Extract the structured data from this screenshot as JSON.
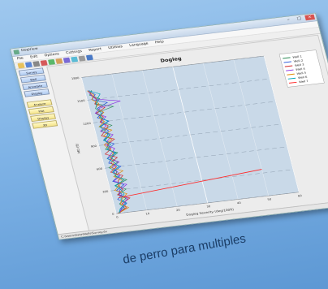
{
  "window": {
    "title": "DogView"
  },
  "menu": [
    "File",
    "Edit",
    "Options",
    "Cuttings",
    "Report",
    "Utilities",
    "Language",
    "Help"
  ],
  "toolbar_icons": [
    "open-icon",
    "save-icon",
    "print-icon",
    "chart-icon",
    "table-icon",
    "grid-icon",
    "zoom-icon",
    "export-icon",
    "settings-icon",
    "help-icon"
  ],
  "left_buttons_top": [
    "Survey",
    "Well",
    "Annotate",
    "Display"
  ],
  "left_buttons_bottom": [
    "Analyze",
    "Plot",
    "Display",
    "3D"
  ],
  "statusbar": "C:\\Users\\Data\\Wells\\Survey.dv",
  "tagline": "de perro para multiples",
  "colors": {
    "window_bg": "#f2f2f2",
    "plot_bg": "#c9d9e8",
    "accent_blue": "#aecbf2",
    "accent_yellow": "#f5e48a"
  },
  "chart_data": {
    "type": "line",
    "title": "Dogleg",
    "xlabel": "Dogleg Severity (deg/100ft)",
    "ylabel": "MD (ft)",
    "xlim": [
      0,
      60
    ],
    "ylim": [
      0,
      1800
    ],
    "x_ticks": [
      "0",
      "10",
      "20",
      "30",
      "40",
      "50",
      "60"
    ],
    "y_ticks": [
      "0",
      "300",
      "600",
      "900",
      "1200",
      "1500",
      "1800"
    ],
    "grid": true,
    "legend_position": "top-right",
    "series": [
      {
        "name": "Well 1",
        "color": "#2e8b57",
        "md": [
          0,
          60,
          120,
          180,
          240,
          300,
          360,
          420,
          480,
          540,
          600,
          660,
          720,
          780,
          840,
          900,
          960,
          1020,
          1080,
          1140,
          1200,
          1260,
          1320,
          1380,
          1440,
          1500,
          1560,
          1620
        ],
        "dls": [
          1.0,
          3.1,
          1.8,
          4.3,
          2.2,
          5.1,
          2.0,
          6.1,
          2.7,
          3.6,
          1.4,
          4.7,
          2.9,
          5.4,
          1.8,
          3.3,
          2.4,
          4.5,
          1.9,
          5.8,
          2.5,
          3.2,
          1.6,
          7.8,
          2.3,
          4.1,
          1.2,
          2.2
        ]
      },
      {
        "name": "Well 2",
        "color": "#1f4fd6",
        "md": [
          0,
          60,
          120,
          180,
          240,
          300,
          360,
          420,
          480,
          540,
          600,
          660,
          720,
          780,
          840,
          900,
          960,
          1020,
          1080,
          1140,
          1200,
          1260,
          1320,
          1380,
          1440,
          1500,
          1560,
          1620
        ],
        "dls": [
          0.8,
          2.4,
          4.2,
          1.6,
          3.4,
          2.0,
          4.8,
          1.5,
          3.8,
          2.5,
          5.3,
          1.7,
          3.1,
          4.4,
          2.7,
          5.0,
          1.9,
          3.6,
          4.2,
          2.1,
          5.2,
          1.8,
          4.1,
          2.6,
          6.2,
          1.5,
          3.0,
          1.1
        ]
      },
      {
        "name": "Well 3",
        "color": "#d12a2a",
        "md": [
          0,
          60,
          120,
          180,
          240,
          300,
          360,
          420,
          480,
          540,
          600,
          660,
          720,
          780,
          840,
          900,
          960,
          1020,
          1080,
          1140,
          1200,
          1260,
          1320,
          1380,
          1440,
          1500,
          1560,
          1620
        ],
        "dls": [
          0.5,
          3.7,
          2.6,
          5.6,
          1.9,
          4.1,
          2.9,
          3.3,
          5.2,
          1.6,
          3.9,
          2.4,
          4.9,
          1.3,
          3.6,
          2.7,
          5.5,
          1.6,
          3.2,
          4.6,
          2.3,
          3.8,
          1.9,
          5.0,
          2.1,
          3.1,
          1.8,
          0.9
        ]
      },
      {
        "name": "Well 4",
        "color": "#8a2be2",
        "md": [
          0,
          60,
          120,
          180,
          240,
          300,
          360,
          420,
          480,
          540,
          600,
          660,
          720,
          780,
          840,
          900,
          960,
          1020,
          1080,
          1140,
          1200,
          1260,
          1320,
          1380,
          1440,
          1500,
          1560,
          1620
        ],
        "dls": [
          1.2,
          2.0,
          3.4,
          4.8,
          2.5,
          3.1,
          5.7,
          1.9,
          4.3,
          3.7,
          2.4,
          5.1,
          1.6,
          3.4,
          4.8,
          2.1,
          3.5,
          5.4,
          1.7,
          3.9,
          2.6,
          4.6,
          1.5,
          3.4,
          10.5,
          2.8,
          1.6,
          1.0
        ]
      },
      {
        "name": "Well 5",
        "color": "#e08a00",
        "md": [
          0,
          60,
          120,
          180,
          240,
          300,
          360,
          420,
          480,
          540,
          600,
          660,
          720,
          780,
          840,
          900,
          960,
          1020,
          1080,
          1140,
          1200,
          1260,
          1320,
          1380,
          1440,
          1500,
          1560,
          1620
        ],
        "dls": [
          0.6,
          4.4,
          2.1,
          3.0,
          5.0,
          1.4,
          3.4,
          4.6,
          2.2,
          5.6,
          1.9,
          3.5,
          2.6,
          4.0,
          3.1,
          1.7,
          4.7,
          2.3,
          5.4,
          1.6,
          3.7,
          2.4,
          4.3,
          1.9,
          3.4,
          1.5,
          2.5,
          0.8
        ]
      },
      {
        "name": "Well 6",
        "color": "#00a5b8",
        "md": [
          0,
          60,
          120,
          180,
          240,
          300,
          360,
          420,
          480,
          540,
          600,
          660,
          720,
          780,
          840,
          900,
          960,
          1020,
          1080,
          1140,
          1200,
          1260,
          1320,
          1380,
          1440,
          1500,
          1560,
          1620
        ],
        "dls": [
          0.9,
          1.7,
          3.9,
          2.6,
          4.1,
          3.4,
          1.8,
          5.2,
          3.0,
          2.2,
          4.6,
          3.6,
          1.6,
          4.9,
          2.3,
          3.9,
          2.0,
          4.3,
          3.2,
          1.8,
          4.9,
          2.7,
          3.4,
          2.0,
          2.7,
          3.3,
          4.6,
          1.3
        ]
      },
      {
        "name": "Well 7",
        "color": "#ff2a2a",
        "md": [
          200,
          350
        ],
        "dls": [
          2,
          50
        ]
      }
    ]
  }
}
